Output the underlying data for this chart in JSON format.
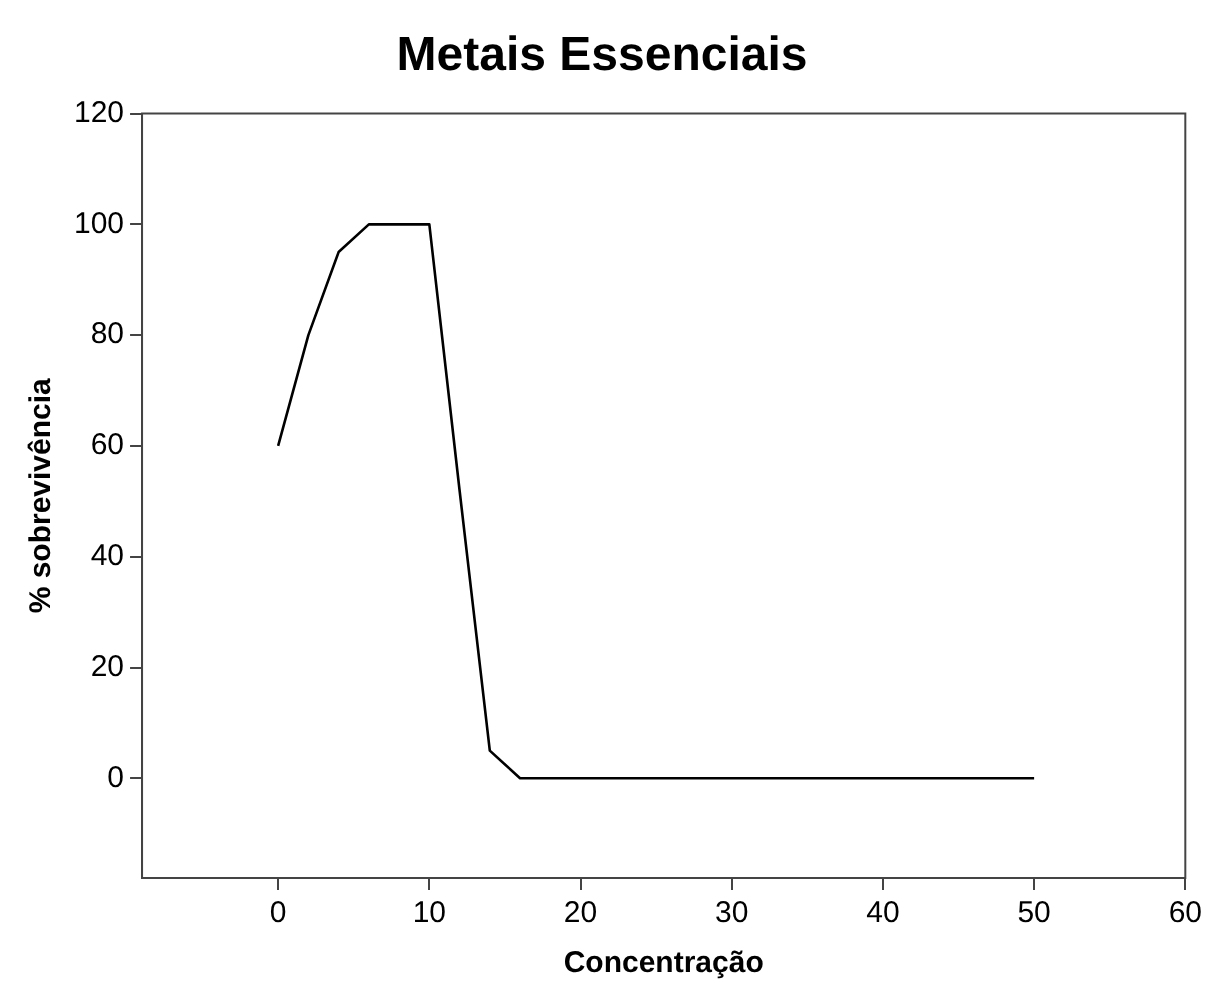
{
  "chart_data": {
    "type": "line",
    "title": "Metais Essenciais",
    "xlabel": "Concentração",
    "ylabel": "% sobrevivência",
    "x": [
      0,
      2,
      4,
      6,
      10,
      12,
      14,
      16,
      50
    ],
    "series": [
      {
        "color": "#000000",
        "values": [
          60,
          80,
          95,
          100,
          100,
          52,
          5,
          0,
          0
        ]
      }
    ],
    "xlim": [
      -9,
      60
    ],
    "xticks": [
      0,
      10,
      20,
      30,
      40,
      50,
      60
    ],
    "ylim": [
      -18,
      120
    ],
    "yticks": [
      0,
      20,
      40,
      60,
      80,
      100,
      120
    ],
    "grid": false,
    "legend": false,
    "marker": "none",
    "line_style": "solid"
  }
}
